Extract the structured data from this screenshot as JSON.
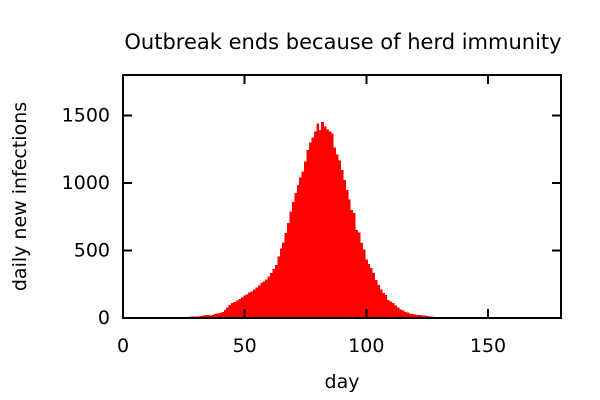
{
  "window": {
    "background": "#ffffff"
  },
  "chart_data": {
    "type": "bar",
    "title": "Outbreak ends because of herd immunity",
    "xlabel": "day",
    "ylabel": "daily new infections",
    "xlim": [
      0,
      180
    ],
    "ylim": [
      0,
      1800
    ],
    "xticks": [
      0,
      50,
      100,
      150
    ],
    "yticks": [
      0,
      500,
      1000,
      1500
    ],
    "grid": false,
    "legend": "none",
    "bar_color": "#ff0000",
    "axis_color": "#000000",
    "text_color": "#000000",
    "x": [
      22,
      23,
      24,
      25,
      26,
      27,
      28,
      29,
      30,
      31,
      32,
      33,
      34,
      35,
      36,
      37,
      38,
      39,
      40,
      41,
      42,
      43,
      44,
      45,
      46,
      47,
      48,
      49,
      50,
      51,
      52,
      53,
      54,
      55,
      56,
      57,
      58,
      59,
      60,
      61,
      62,
      63,
      64,
      65,
      66,
      67,
      68,
      69,
      70,
      71,
      72,
      73,
      74,
      75,
      76,
      77,
      78,
      79,
      80,
      81,
      82,
      83,
      84,
      85,
      86,
      87,
      88,
      89,
      90,
      91,
      92,
      93,
      94,
      95,
      96,
      97,
      98,
      99,
      100,
      101,
      102,
      103,
      104,
      105,
      106,
      107,
      108,
      109,
      110,
      111,
      112,
      113,
      114,
      115,
      116,
      117,
      118,
      119,
      120,
      121,
      122,
      123,
      124,
      125,
      126,
      127,
      128,
      129,
      130,
      131,
      132,
      133,
      134,
      135
    ],
    "values": [
      5,
      7,
      6,
      8,
      9,
      8,
      10,
      11,
      12,
      13,
      15,
      20,
      24,
      22,
      20,
      24,
      28,
      32,
      36,
      44,
      58,
      76,
      96,
      110,
      118,
      128,
      140,
      152,
      165,
      175,
      188,
      198,
      212,
      225,
      242,
      258,
      272,
      285,
      308,
      332,
      362,
      392,
      455,
      515,
      560,
      628,
      705,
      790,
      858,
      925,
      985,
      1040,
      1085,
      1158,
      1245,
      1300,
      1338,
      1382,
      1442,
      1392,
      1452,
      1420,
      1398,
      1382,
      1368,
      1262,
      1212,
      1168,
      1095,
      1022,
      948,
      876,
      800,
      778,
      652,
      632,
      556,
      506,
      432,
      400,
      370,
      334,
      282,
      246,
      210,
      186,
      170,
      135,
      122,
      110,
      92,
      76,
      62,
      55,
      46,
      40,
      35,
      30,
      26,
      22,
      21,
      19,
      17,
      15,
      13,
      12,
      4,
      0,
      8,
      9,
      8,
      9,
      7,
      5
    ]
  }
}
